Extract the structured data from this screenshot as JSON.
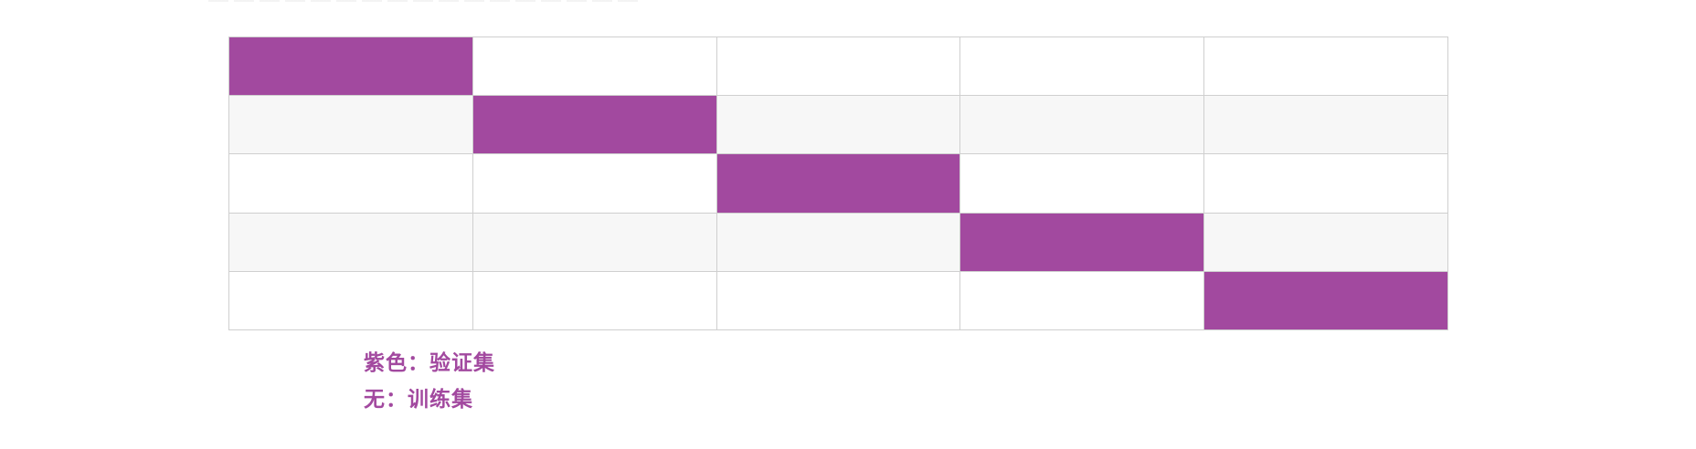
{
  "grid": {
    "rows": 5,
    "columns": 5,
    "validation_color": "#a2499f",
    "training_color_odd_rows": "#ffffff",
    "training_color_even_rows": "#f7f7f7",
    "folds": [
      [
        1,
        0,
        0,
        0,
        0
      ],
      [
        0,
        1,
        0,
        0,
        0
      ],
      [
        0,
        0,
        1,
        0,
        0
      ],
      [
        0,
        0,
        0,
        1,
        0
      ],
      [
        0,
        0,
        0,
        0,
        1
      ]
    ]
  },
  "legend": {
    "text_color": "#a2499f",
    "validation_label": "紫色：验证集",
    "training_label": "无：训练集"
  }
}
